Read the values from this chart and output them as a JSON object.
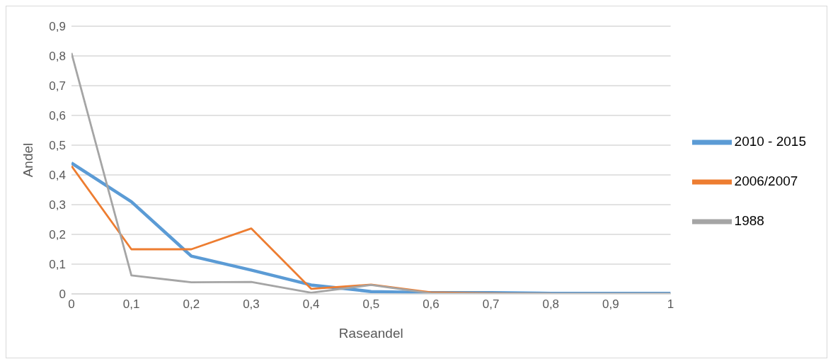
{
  "chart_data": {
    "type": "line",
    "xlabel": "Raseandel",
    "ylabel": "Andel",
    "x": [
      0,
      0.1,
      0.2,
      0.3,
      0.4,
      0.5,
      0.6,
      0.7,
      0.8,
      0.9,
      1
    ],
    "series": [
      {
        "name": "2010 - 2015",
        "color": "#5b9bd5",
        "values": [
          0.44,
          0.31,
          0.127,
          0.08,
          0.03,
          0.008,
          0.004,
          0.004,
          0.002,
          0.002,
          0.002
        ]
      },
      {
        "name": "2006/2007",
        "color": "#ed7d31",
        "values": [
          0.43,
          0.15,
          0.15,
          0.22,
          0.017,
          0.031,
          0.005,
          0.002,
          0,
          null,
          null
        ]
      },
      {
        "name": "1988",
        "color": "#a5a5a5",
        "values": [
          0.81,
          0.062,
          0.039,
          0.04,
          0.004,
          0.03,
          0.002,
          0.001,
          0.001,
          0.001,
          0.001
        ]
      }
    ],
    "xlim": [
      0,
      1
    ],
    "xticks": [
      0,
      {
        "value": 0.1,
        "label": "0,1"
      },
      {
        "value": 0.2,
        "label": "0,2"
      },
      {
        "value": 0.3,
        "label": "0,3"
      },
      {
        "value": 0.4,
        "label": "0,4"
      },
      {
        "value": 0.5,
        "label": "0,5"
      },
      {
        "value": 0.6,
        "label": "0,6"
      },
      {
        "value": 0.7,
        "label": "0,7"
      },
      {
        "value": 0.8,
        "label": "0,8"
      },
      {
        "value": 0.9,
        "label": "0,9"
      },
      1
    ],
    "ylim": [
      0,
      0.9
    ],
    "yticks": [
      0,
      {
        "value": 0.1,
        "label": "0,1"
      },
      {
        "value": 0.2,
        "label": "0,2"
      },
      {
        "value": 0.3,
        "label": "0,3"
      },
      {
        "value": 0.4,
        "label": "0,4"
      },
      {
        "value": 0.5,
        "label": "0,5"
      },
      {
        "value": 0.6,
        "label": "0,6"
      },
      {
        "value": 0.7,
        "label": "0,7"
      },
      {
        "value": 0.8,
        "label": "0,8"
      },
      {
        "value": 0.9,
        "label": "0,9"
      }
    ],
    "grid": "y",
    "legend": "right",
    "marker": "none",
    "line_style": "solid"
  }
}
